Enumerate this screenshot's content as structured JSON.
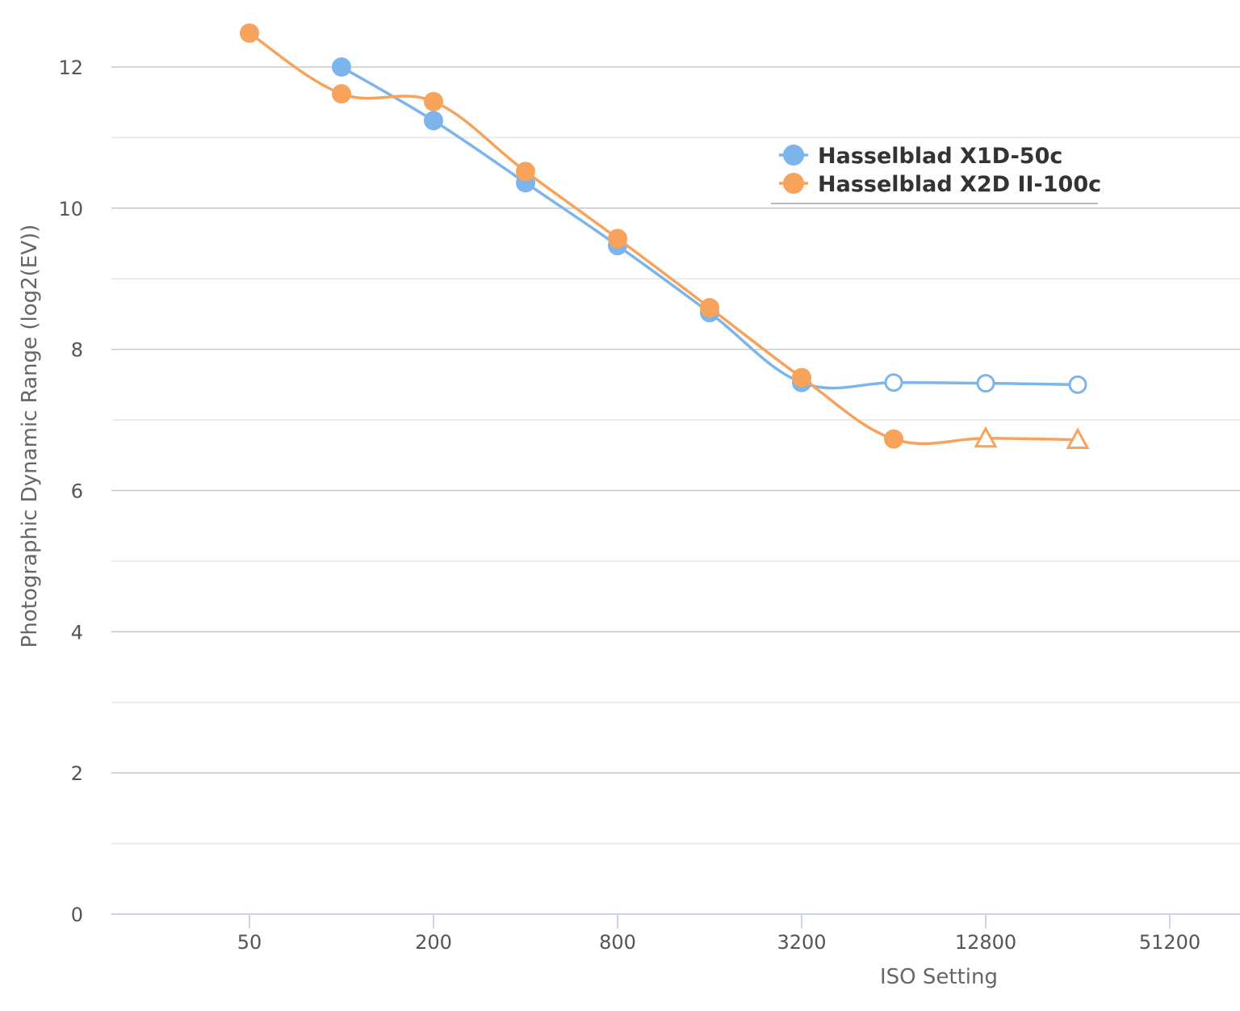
{
  "chart_data": {
    "type": "line",
    "title": "",
    "xlabel": "ISO Setting",
    "ylabel": "Photographic Dynamic Range (log2(EV))",
    "x_scale": "log2",
    "xlim": [
      35,
      60000
    ],
    "ylim": [
      0,
      12.5
    ],
    "x_ticks": [
      50,
      200,
      800,
      3200,
      12800,
      51200
    ],
    "y_ticks": [
      0,
      2,
      4,
      6,
      8,
      10,
      12
    ],
    "grid": true,
    "legend_position": "top-right",
    "series": [
      {
        "name": "Hasselblad X1D-50c",
        "color": "#7cb5ec",
        "x": [
          100,
          200,
          400,
          800,
          1600,
          3200,
          6400,
          12800,
          25600
        ],
        "y": [
          12.0,
          11.24,
          10.36,
          9.47,
          8.52,
          7.53,
          7.53,
          7.52,
          7.5
        ],
        "markers": [
          "circle",
          "circle",
          "circle",
          "circle",
          "circle",
          "circle",
          "open-circle",
          "open-circle",
          "open-circle"
        ]
      },
      {
        "name": "Hasselblad X2D II-100c",
        "color": "#f7a35c",
        "x": [
          50,
          100,
          200,
          400,
          800,
          1600,
          3200,
          6400,
          12800,
          25600
        ],
        "y": [
          12.48,
          11.62,
          11.51,
          10.52,
          9.57,
          8.59,
          7.6,
          6.73,
          6.74,
          6.72
        ],
        "markers": [
          "circle",
          "circle",
          "circle",
          "circle",
          "circle",
          "circle",
          "circle",
          "circle",
          "open-triangle",
          "open-triangle"
        ]
      }
    ]
  }
}
